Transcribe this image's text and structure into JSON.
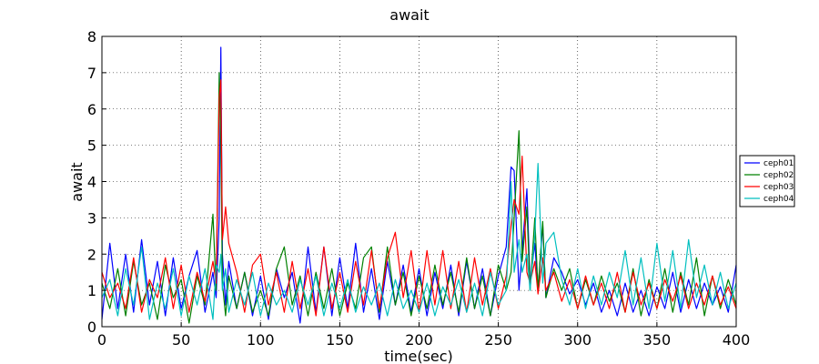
{
  "chart_data": {
    "type": "line",
    "title": "await",
    "xlabel": "time(sec)",
    "ylabel": "await",
    "xlim": [
      0,
      400
    ],
    "ylim": [
      0,
      8
    ],
    "xticks": [
      "0",
      "50",
      "100",
      "150",
      "200",
      "250",
      "300",
      "350",
      "400"
    ],
    "yticks": [
      "0",
      "1",
      "2",
      "3",
      "4",
      "5",
      "6",
      "7",
      "8"
    ],
    "grid": true,
    "legend_position": "right",
    "x": [
      0,
      5,
      10,
      15,
      20,
      25,
      30,
      35,
      40,
      45,
      50,
      55,
      60,
      65,
      70,
      72,
      74,
      75,
      76,
      78,
      80,
      85,
      90,
      95,
      100,
      105,
      110,
      115,
      120,
      125,
      130,
      135,
      140,
      145,
      150,
      155,
      160,
      165,
      170,
      175,
      180,
      185,
      190,
      195,
      200,
      205,
      210,
      215,
      220,
      225,
      230,
      235,
      240,
      245,
      250,
      255,
      258,
      260,
      263,
      265,
      268,
      270,
      273,
      275,
      278,
      280,
      285,
      290,
      295,
      300,
      305,
      310,
      315,
      320,
      325,
      330,
      335,
      340,
      345,
      350,
      355,
      360,
      365,
      370,
      375,
      380,
      385,
      390,
      395,
      400
    ],
    "series": [
      {
        "name": "ceph01",
        "color": "#0000ff",
        "values": [
          0.2,
          2.3,
          0.5,
          2.0,
          0.4,
          2.4,
          0.6,
          1.8,
          0.3,
          1.9,
          0.5,
          1.4,
          2.1,
          0.4,
          1.5,
          0.8,
          3.0,
          7.7,
          2.0,
          0.6,
          1.8,
          0.5,
          1.5,
          0.3,
          1.4,
          0.2,
          1.6,
          0.8,
          1.5,
          0.1,
          2.2,
          0.4,
          2.2,
          0.3,
          1.9,
          0.5,
          2.3,
          0.4,
          1.6,
          0.2,
          1.8,
          0.6,
          1.7,
          0.4,
          1.6,
          0.3,
          1.5,
          0.5,
          1.7,
          0.3,
          1.8,
          0.5,
          1.6,
          0.3,
          1.4,
          2.2,
          4.4,
          4.3,
          1.0,
          2.1,
          3.8,
          1.2,
          2.3,
          1.0,
          2.8,
          0.8,
          1.9,
          1.5,
          0.9,
          1.3,
          0.6,
          1.2,
          0.4,
          1.0,
          0.3,
          1.2,
          0.4,
          1.0,
          0.3,
          1.1,
          0.5,
          1.5,
          0.4,
          1.3,
          0.5,
          1.2,
          0.6,
          1.1,
          0.4,
          1.7
        ]
      },
      {
        "name": "ceph02",
        "color": "#008000",
        "values": [
          1.2,
          0.5,
          1.6,
          0.3,
          1.8,
          0.6,
          1.2,
          0.2,
          1.7,
          0.8,
          1.3,
          0.1,
          1.4,
          0.6,
          3.1,
          1.0,
          7.0,
          5.0,
          1.2,
          0.3,
          1.4,
          0.5,
          1.5,
          0.4,
          1.0,
          0.3,
          1.6,
          2.2,
          0.6,
          1.4,
          0.3,
          1.5,
          0.5,
          1.6,
          0.3,
          1.2,
          0.5,
          1.9,
          2.2,
          0.4,
          2.2,
          0.6,
          1.5,
          0.3,
          1.4,
          0.5,
          1.7,
          0.6,
          1.5,
          0.4,
          1.9,
          0.5,
          1.4,
          0.3,
          1.7,
          1.0,
          1.5,
          3.0,
          5.4,
          1.8,
          3.3,
          1.0,
          3.0,
          1.0,
          2.9,
          0.8,
          1.6,
          1.0,
          1.6,
          0.5,
          1.3,
          0.6,
          1.4,
          0.7,
          1.2,
          0.4,
          1.6,
          0.3,
          1.3,
          0.5,
          1.6,
          0.4,
          1.5,
          0.6,
          1.9,
          0.3,
          1.4,
          0.5,
          1.3,
          0.6
        ]
      },
      {
        "name": "ceph03",
        "color": "#ff0000",
        "values": [
          1.5,
          0.8,
          1.2,
          0.5,
          1.9,
          0.4,
          1.3,
          0.8,
          1.9,
          0.5,
          1.7,
          0.4,
          1.5,
          0.7,
          1.8,
          1.2,
          6.3,
          6.8,
          2.4,
          3.3,
          2.3,
          1.5,
          0.4,
          1.7,
          2.0,
          0.6,
          1.5,
          0.4,
          1.8,
          0.5,
          1.6,
          0.3,
          2.2,
          0.5,
          1.5,
          0.4,
          1.8,
          0.6,
          2.1,
          0.5,
          1.9,
          2.6,
          0.8,
          2.1,
          0.4,
          2.1,
          0.6,
          2.1,
          0.5,
          1.8,
          0.4,
          1.9,
          0.6,
          1.6,
          0.5,
          1.4,
          2.8,
          3.5,
          3.1,
          4.7,
          1.5,
          1.2,
          1.8,
          0.9,
          1.9,
          1.0,
          1.5,
          0.7,
          1.3,
          0.5,
          1.4,
          0.6,
          1.2,
          0.5,
          1.5,
          0.4,
          1.5,
          0.6,
          1.2,
          0.5,
          1.3,
          0.7,
          1.4,
          0.5,
          1.2,
          0.6,
          1.4,
          0.6,
          1.1,
          0.5
        ]
      },
      {
        "name": "ceph04",
        "color": "#00bfbf",
        "values": [
          0.8,
          1.3,
          0.3,
          1.6,
          0.6,
          2.2,
          0.2,
          1.2,
          0.5,
          1.6,
          0.3,
          1.4,
          0.6,
          1.6,
          0.2,
          1.7,
          1.5,
          2.0,
          1.0,
          1.6,
          0.4,
          1.3,
          0.6,
          1.5,
          0.3,
          1.2,
          0.6,
          1.0,
          0.4,
          1.3,
          0.6,
          1.4,
          0.3,
          1.2,
          0.5,
          1.3,
          0.4,
          1.1,
          0.6,
          1.2,
          0.3,
          1.3,
          0.5,
          1.0,
          0.4,
          1.2,
          0.3,
          1.1,
          0.6,
          1.3,
          0.4,
          1.2,
          0.3,
          1.5,
          0.6,
          1.0,
          4.0,
          1.5,
          2.4,
          1.5,
          2.0,
          1.0,
          2.5,
          4.5,
          1.2,
          2.3,
          2.6,
          1.3,
          0.6,
          1.6,
          0.5,
          1.4,
          0.6,
          1.5,
          0.8,
          2.1,
          0.6,
          1.9,
          0.5,
          2.3,
          0.7,
          2.1,
          0.5,
          2.4,
          0.8,
          1.7,
          0.6,
          1.5,
          0.5,
          1.2
        ]
      }
    ]
  }
}
